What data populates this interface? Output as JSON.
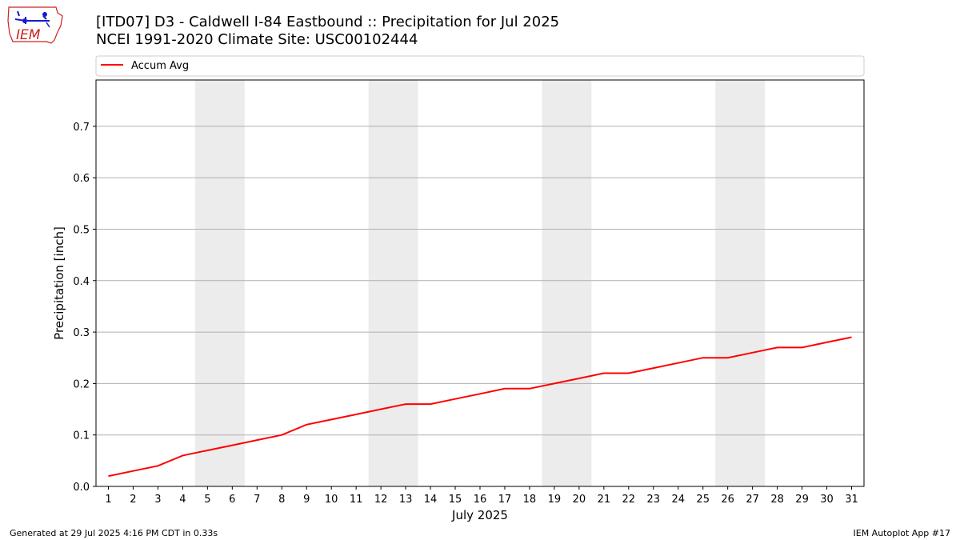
{
  "header": {
    "title_line1": "[ITD07] D3 - Caldwell I-84 Eastbound :: Precipitation for Jul 2025",
    "title_line2": "NCEI 1991-2020 Climate Site: USC00102444",
    "logo_text": "IEM"
  },
  "footer": {
    "generated": "Generated at 29 Jul 2025 4:16 PM CDT in 0.33s",
    "app": "IEM Autoplot App #17"
  },
  "colors": {
    "line": "#ff0000",
    "weekend_band": "#ececec",
    "grid": "#b0b0b0",
    "logo_text": "#d02020",
    "logo_icon": "#1a1acc"
  },
  "chart_data": {
    "type": "line",
    "xlabel": "July 2025",
    "ylabel": "Precipitation [inch]",
    "xlim": [
      0.5,
      31.5
    ],
    "ylim": [
      0,
      0.79
    ],
    "yticks": [
      0.0,
      0.1,
      0.2,
      0.3,
      0.4,
      0.5,
      0.6,
      0.7
    ],
    "ytick_labels": [
      "0.0",
      "0.1",
      "0.2",
      "0.3",
      "0.4",
      "0.5",
      "0.6",
      "0.7"
    ],
    "x": [
      1,
      2,
      3,
      4,
      5,
      6,
      7,
      8,
      9,
      10,
      11,
      12,
      13,
      14,
      15,
      16,
      17,
      18,
      19,
      20,
      21,
      22,
      23,
      24,
      25,
      26,
      27,
      28,
      29,
      30,
      31
    ],
    "xtick_labels": [
      "1",
      "2",
      "3",
      "4",
      "5",
      "6",
      "7",
      "8",
      "9",
      "10",
      "11",
      "12",
      "13",
      "14",
      "15",
      "16",
      "17",
      "18",
      "19",
      "20",
      "21",
      "22",
      "23",
      "24",
      "25",
      "26",
      "27",
      "28",
      "29",
      "30",
      "31"
    ],
    "grid": "horizontal",
    "legend_position": "top, above plot",
    "shaded_days": [
      [
        5,
        6
      ],
      [
        12,
        13
      ],
      [
        19,
        20
      ],
      [
        26,
        27
      ]
    ],
    "series": [
      {
        "name": "Accum Avg",
        "color": "#ff0000",
        "values": [
          0.02,
          0.03,
          0.04,
          0.06,
          0.07,
          0.08,
          0.09,
          0.1,
          0.12,
          0.13,
          0.14,
          0.15,
          0.16,
          0.16,
          0.17,
          0.18,
          0.19,
          0.19,
          0.2,
          0.21,
          0.22,
          0.22,
          0.23,
          0.24,
          0.25,
          0.25,
          0.26,
          0.27,
          0.27,
          0.28,
          0.29
        ]
      }
    ]
  }
}
